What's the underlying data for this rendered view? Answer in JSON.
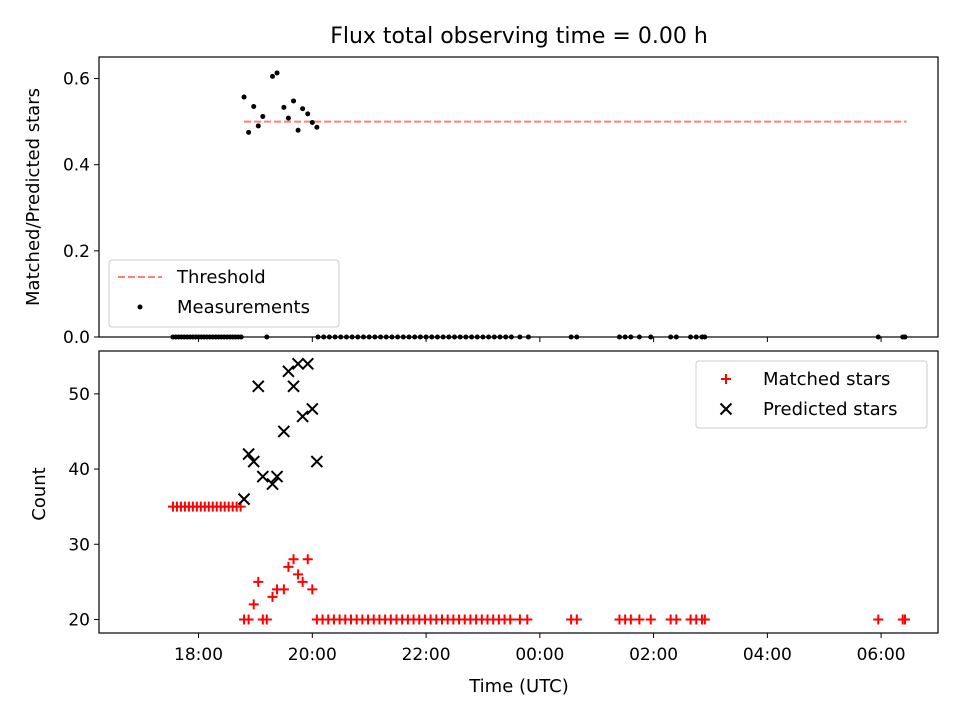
{
  "chart_data": [
    {
      "type": "scatter",
      "title": "Flux total observing time = 0.00 h",
      "xlabel": "",
      "ylabel": "Matched/Predicted stars",
      "ylim": [
        0.0,
        0.65
      ],
      "yticks": [
        0.0,
        0.2,
        0.4,
        0.6
      ],
      "ytick_labels": [
        "0.0",
        "0.2",
        "0.4",
        "0.6"
      ],
      "legend": {
        "position": "bottom-left",
        "entries": [
          "Threshold",
          "Measurements"
        ]
      },
      "threshold": {
        "name": "Threshold",
        "value": 0.5,
        "x_start": 18.8,
        "x_end": 30.45,
        "color": "#ff7f7f"
      },
      "series": [
        {
          "name": "Measurements",
          "color": "#000000",
          "x": [
            18.8,
            18.88,
            18.97,
            19.05,
            19.13,
            19.3,
            19.38,
            19.5,
            19.58,
            19.67,
            19.75,
            19.83,
            19.92,
            20.0,
            20.08,
            17.55,
            17.6,
            17.65,
            17.7,
            17.75,
            17.8,
            17.85,
            17.9,
            17.95,
            18.0,
            18.05,
            18.1,
            18.15,
            18.2,
            18.25,
            18.3,
            18.35,
            18.4,
            18.45,
            18.5,
            18.55,
            18.6,
            18.65,
            18.7,
            18.75,
            19.2,
            20.1,
            20.2,
            20.3,
            20.4,
            20.5,
            20.6,
            20.7,
            20.8,
            20.9,
            21.0,
            21.1,
            21.2,
            21.3,
            21.4,
            21.5,
            21.6,
            21.7,
            21.8,
            21.9,
            22.0,
            22.1,
            22.2,
            22.3,
            22.4,
            22.5,
            22.6,
            22.7,
            22.8,
            22.9,
            23.0,
            23.1,
            23.2,
            23.3,
            23.4,
            23.5,
            23.65,
            23.8,
            24.55,
            24.65,
            25.4,
            25.5,
            25.6,
            25.75,
            25.95,
            26.3,
            26.4,
            26.65,
            26.75,
            26.85,
            26.9,
            29.95,
            30.38,
            30.42
          ],
          "y": [
            0.557,
            0.475,
            0.535,
            0.49,
            0.512,
            0.605,
            0.613,
            0.533,
            0.508,
            0.548,
            0.48,
            0.53,
            0.518,
            0.498,
            0.487,
            0,
            0,
            0,
            0,
            0,
            0,
            0,
            0,
            0,
            0,
            0,
            0,
            0,
            0,
            0,
            0,
            0,
            0,
            0,
            0,
            0,
            0,
            0,
            0,
            0,
            0,
            0,
            0,
            0,
            0,
            0,
            0,
            0,
            0,
            0,
            0,
            0,
            0,
            0,
            0,
            0,
            0,
            0,
            0,
            0,
            0,
            0,
            0,
            0,
            0,
            0,
            0,
            0,
            0,
            0,
            0,
            0,
            0,
            0,
            0,
            0,
            0,
            0,
            0,
            0,
            0,
            0,
            0,
            0,
            0,
            0,
            0,
            0,
            0,
            0,
            0,
            0,
            0,
            0
          ]
        }
      ]
    },
    {
      "type": "scatter",
      "title": "",
      "xlabel": "Time (UTC)",
      "ylabel": "Count",
      "xlim": [
        16.25,
        31.0
      ],
      "xticks": [
        18,
        20,
        22,
        24,
        26,
        28,
        30
      ],
      "xtick_labels": [
        "18:00",
        "20:00",
        "22:00",
        "00:00",
        "02:00",
        "04:00",
        "06:00"
      ],
      "ylim": [
        18.2,
        55.7
      ],
      "yticks": [
        20,
        30,
        40,
        50
      ],
      "ytick_labels": [
        "20",
        "30",
        "40",
        "50"
      ],
      "legend": {
        "position": "top-right",
        "entries": [
          "Matched stars",
          "Predicted stars"
        ]
      },
      "series": [
        {
          "name": "Matched stars",
          "color": "#ff0000",
          "marker": "plus",
          "x": [
            17.55,
            17.62,
            17.69,
            17.76,
            17.83,
            17.9,
            17.97,
            18.04,
            18.11,
            18.18,
            18.25,
            18.32,
            18.39,
            18.46,
            18.53,
            18.6,
            18.67,
            18.74,
            18.8,
            18.88,
            18.97,
            19.05,
            19.13,
            19.2,
            19.3,
            19.38,
            19.5,
            19.58,
            19.67,
            19.75,
            19.83,
            19.92,
            20.0,
            20.08,
            20.18,
            20.28,
            20.38,
            20.48,
            20.58,
            20.68,
            20.78,
            20.88,
            20.98,
            21.08,
            21.18,
            21.28,
            21.38,
            21.48,
            21.58,
            21.68,
            21.78,
            21.88,
            21.98,
            22.08,
            22.18,
            22.28,
            22.38,
            22.48,
            22.58,
            22.68,
            22.78,
            22.88,
            22.98,
            23.08,
            23.18,
            23.28,
            23.38,
            23.48,
            23.65,
            23.78,
            24.55,
            24.65,
            25.4,
            25.5,
            25.6,
            25.75,
            25.95,
            26.3,
            26.4,
            26.65,
            26.75,
            26.85,
            26.9,
            29.95,
            30.38,
            30.42
          ],
          "y": [
            35,
            35,
            35,
            35,
            35,
            35,
            35,
            35,
            35,
            35,
            35,
            35,
            35,
            35,
            35,
            35,
            35,
            35,
            20,
            20,
            22,
            25,
            20,
            20,
            23,
            24,
            24,
            27,
            28,
            26,
            25,
            28,
            24,
            20,
            20,
            20,
            20,
            20,
            20,
            20,
            20,
            20,
            20,
            20,
            20,
            20,
            20,
            20,
            20,
            20,
            20,
            20,
            20,
            20,
            20,
            20,
            20,
            20,
            20,
            20,
            20,
            20,
            20,
            20,
            20,
            20,
            20,
            20,
            20,
            20,
            20,
            20,
            20,
            20,
            20,
            20,
            20,
            20,
            20,
            20,
            20,
            20,
            20,
            20,
            20,
            20
          ]
        },
        {
          "name": "Predicted stars",
          "color": "#000000",
          "marker": "x",
          "x": [
            18.8,
            18.88,
            18.97,
            19.05,
            19.13,
            19.3,
            19.38,
            19.5,
            19.58,
            19.67,
            19.75,
            19.83,
            19.92,
            20.0,
            20.08
          ],
          "y": [
            36,
            42,
            41,
            51,
            39,
            38,
            39,
            45,
            53,
            51,
            54,
            47,
            54,
            48,
            41
          ]
        }
      ]
    }
  ]
}
